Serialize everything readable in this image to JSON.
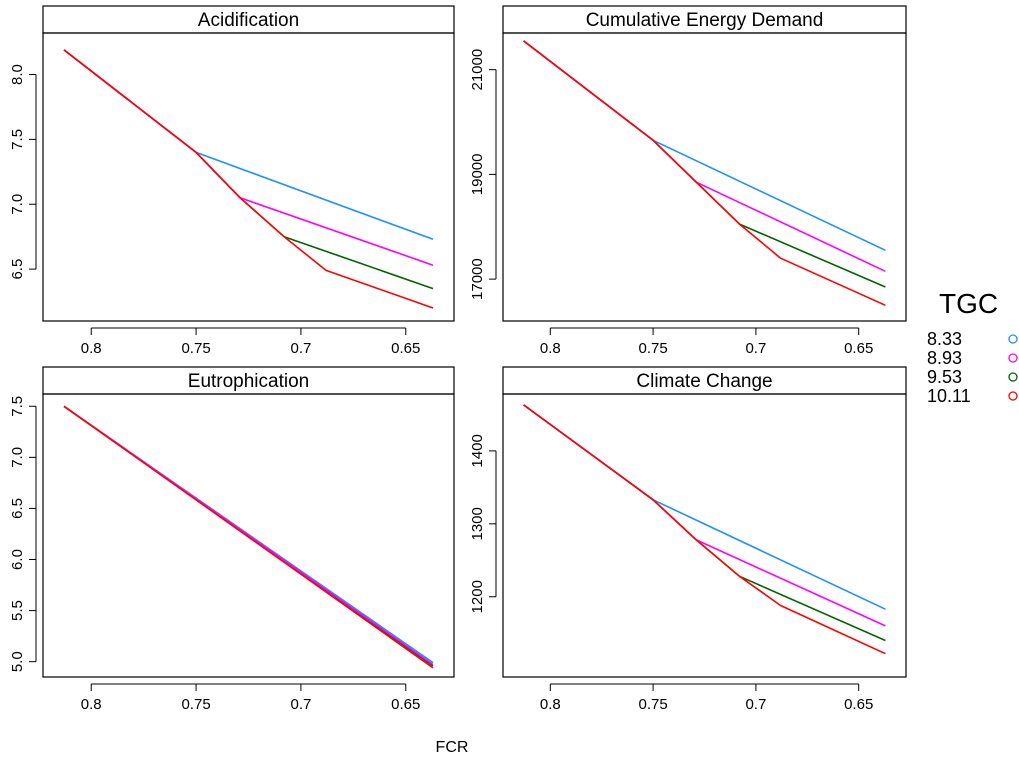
{
  "chart_data": [
    {
      "type": "line",
      "title": "Acidification",
      "x_reversed": true,
      "xticks": [
        0.8,
        0.75,
        0.7,
        0.65
      ],
      "yticks": [
        6.5,
        7.0,
        7.5,
        8.0
      ],
      "ylim": [
        6.1,
        8.32
      ],
      "series": [
        {
          "name": "8.33",
          "x": [
            0.813,
            0.75,
            0.637
          ],
          "y": [
            8.19,
            7.4,
            6.73
          ]
        },
        {
          "name": "8.93",
          "x": [
            0.813,
            0.75,
            0.729,
            0.637
          ],
          "y": [
            8.19,
            7.4,
            7.05,
            6.53
          ]
        },
        {
          "name": "9.53",
          "x": [
            0.813,
            0.75,
            0.729,
            0.708,
            0.637
          ],
          "y": [
            8.19,
            7.4,
            7.05,
            6.75,
            6.35
          ]
        },
        {
          "name": "10.11",
          "x": [
            0.813,
            0.75,
            0.729,
            0.708,
            0.688,
            0.637
          ],
          "y": [
            8.19,
            7.4,
            7.05,
            6.75,
            6.49,
            6.2
          ]
        }
      ]
    },
    {
      "type": "line",
      "title": "Cumulative Energy Demand",
      "x_reversed": true,
      "xticks": [
        0.8,
        0.75,
        0.7,
        0.65
      ],
      "yticks": [
        17000,
        19000,
        21000
      ],
      "ylim": [
        16200,
        21700
      ],
      "series": [
        {
          "name": "8.33",
          "x": [
            0.813,
            0.75,
            0.637
          ],
          "y": [
            21550,
            19650,
            17550
          ]
        },
        {
          "name": "8.93",
          "x": [
            0.813,
            0.75,
            0.729,
            0.637
          ],
          "y": [
            21550,
            19650,
            18850,
            17150
          ]
        },
        {
          "name": "9.53",
          "x": [
            0.813,
            0.75,
            0.729,
            0.708,
            0.637
          ],
          "y": [
            21550,
            19650,
            18850,
            18050,
            16850
          ]
        },
        {
          "name": "10.11",
          "x": [
            0.813,
            0.75,
            0.729,
            0.708,
            0.688,
            0.637
          ],
          "y": [
            21550,
            19650,
            18850,
            18050,
            17400,
            16500
          ]
        }
      ]
    },
    {
      "type": "line",
      "title": "Eutrophication",
      "x_reversed": true,
      "xticks": [
        0.8,
        0.75,
        0.7,
        0.65
      ],
      "yticks": [
        5.0,
        5.5,
        6.0,
        6.5,
        7.0,
        7.5
      ],
      "ylim": [
        4.85,
        7.62
      ],
      "series": [
        {
          "name": "8.33",
          "x": [
            0.813,
            0.637
          ],
          "y": [
            7.5,
            4.99
          ]
        },
        {
          "name": "8.93",
          "x": [
            0.813,
            0.637
          ],
          "y": [
            7.5,
            4.97
          ]
        },
        {
          "name": "9.53",
          "x": [
            0.813,
            0.637
          ],
          "y": [
            7.5,
            4.96
          ]
        },
        {
          "name": "10.11",
          "x": [
            0.813,
            0.637
          ],
          "y": [
            7.5,
            4.94
          ]
        }
      ]
    },
    {
      "type": "line",
      "title": "Climate Change",
      "x_reversed": true,
      "xticks": [
        0.8,
        0.75,
        0.7,
        0.65
      ],
      "yticks": [
        1200,
        1300,
        1400
      ],
      "ylim": [
        1090,
        1478
      ],
      "series": [
        {
          "name": "8.33",
          "x": [
            0.813,
            0.75,
            0.637
          ],
          "y": [
            1463,
            1333,
            1183
          ]
        },
        {
          "name": "8.93",
          "x": [
            0.813,
            0.75,
            0.729,
            0.637
          ],
          "y": [
            1463,
            1333,
            1278,
            1160
          ]
        },
        {
          "name": "9.53",
          "x": [
            0.813,
            0.75,
            0.729,
            0.708,
            0.637
          ],
          "y": [
            1463,
            1333,
            1278,
            1228,
            1140
          ]
        },
        {
          "name": "10.11",
          "x": [
            0.813,
            0.75,
            0.729,
            0.708,
            0.688,
            0.637
          ],
          "y": [
            1463,
            1333,
            1278,
            1228,
            1188,
            1122
          ]
        }
      ]
    }
  ],
  "shared": {
    "xlabel": "FCR",
    "xlim": [
      0.823,
      0.627
    ]
  },
  "legend": {
    "title": "TGC",
    "placement": "right",
    "items": [
      {
        "label": "8.33",
        "color": "#1E90FF"
      },
      {
        "label": "8.93",
        "color": "#FF00FF"
      },
      {
        "label": "9.53",
        "color": "#006400"
      },
      {
        "label": "10.11",
        "color": "#FF0000"
      }
    ]
  }
}
